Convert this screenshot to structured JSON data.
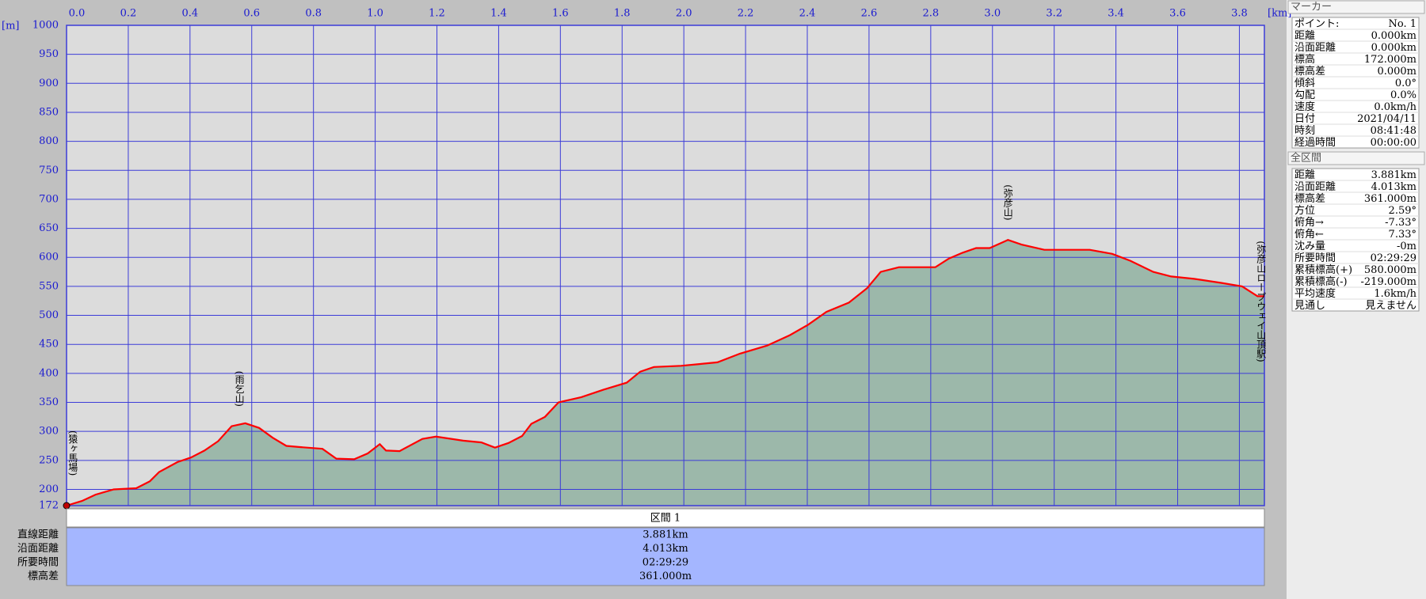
{
  "chart_data": {
    "type": "area",
    "x_unit": "[km]",
    "y_unit": "[m]",
    "x": [
      0,
      0.05,
      0.094,
      0.153,
      0.226,
      0.27,
      0.3,
      0.359,
      0.403,
      0.447,
      0.491,
      0.535,
      0.579,
      0.624,
      0.668,
      0.712,
      0.756,
      0.829,
      0.874,
      0.932,
      0.976,
      1.015,
      1.035,
      1.079,
      1.153,
      1.197,
      1.285,
      1.344,
      1.388,
      1.432,
      1.476,
      1.506,
      1.55,
      1.594,
      1.668,
      1.74,
      1.815,
      1.859,
      1.903,
      1.991,
      2.05,
      2.109,
      2.182,
      2.27,
      2.344,
      2.403,
      2.462,
      2.535,
      2.594,
      2.638,
      2.697,
      2.815,
      2.859,
      2.903,
      2.947,
      2.991,
      3.05,
      3.094,
      3.168,
      3.315,
      3.388,
      3.447,
      3.521,
      3.579,
      3.653,
      3.741,
      3.809,
      3.859,
      3.881
    ],
    "values": [
      172,
      180,
      191,
      200,
      202,
      214,
      230,
      247,
      255,
      267,
      283,
      309,
      314,
      306,
      289,
      275,
      273,
      270,
      253,
      252,
      262,
      278,
      267,
      266,
      287,
      291,
      284,
      281,
      272,
      280,
      292,
      313,
      325,
      350,
      359,
      372,
      384,
      403,
      411,
      413,
      416,
      419,
      434,
      448,
      466,
      484,
      506,
      522,
      547,
      575,
      583,
      583,
      598,
      608,
      616,
      616,
      630,
      622,
      613,
      613,
      606,
      594,
      575,
      567,
      563,
      556,
      550,
      533,
      533
    ],
    "line_color": "#ff0000",
    "fill_color": "#9cb8aa",
    "grid_color": "#3c3cd8",
    "grid": true,
    "xlim": [
      0,
      3.881
    ],
    "xticks": [
      {
        "value": 0,
        "label": "0.0"
      },
      0.2,
      0.4,
      0.6,
      0.8,
      {
        "value": 1,
        "label": "1.0"
      },
      1.2,
      1.4,
      1.6,
      1.8,
      {
        "value": 2,
        "label": "2.0"
      },
      2.2,
      2.4,
      2.6,
      2.8,
      {
        "value": 3,
        "label": "3.0"
      },
      3.2,
      3.4,
      3.6,
      3.8
    ],
    "ylim": [
      172,
      1000
    ],
    "yticks": [
      172,
      200,
      250,
      300,
      350,
      400,
      450,
      500,
      550,
      600,
      650,
      700,
      750,
      800,
      850,
      900,
      950,
      1000
    ],
    "annotations": [
      {
        "text": "(猿ヶ馬場)",
        "x": 0.02
      },
      {
        "text": "(雨乞山)",
        "x": 0.56
      },
      {
        "text": "(弥彦山)",
        "x": 3.05
      },
      {
        "text": "(弥彦山ロープウェイ山頂駅)",
        "x": 3.87
      }
    ]
  },
  "segment_table": {
    "title": "区間 1",
    "rows": [
      [
        "直線距離",
        "3.881km"
      ],
      [
        "沿面距離",
        "4.013km"
      ],
      [
        "所要時間",
        "02:29:29"
      ],
      [
        "標高差",
        "361.000m"
      ]
    ]
  },
  "marker_panel": {
    "title": "マーカー",
    "rows": [
      [
        "ポイント:",
        "No. 1"
      ],
      [
        "距離",
        "0.000km"
      ],
      [
        "沿面距離",
        "0.000km"
      ],
      [
        "標高",
        "172.000m"
      ],
      [
        "標高差",
        "0.000m"
      ],
      [
        "傾斜",
        "0.0°"
      ],
      [
        "勾配",
        "0.0%"
      ],
      [
        "速度",
        "0.0km/h"
      ],
      [
        "日付",
        "2021/04/11"
      ],
      [
        "時刻",
        "08:41:48"
      ],
      [
        "経過時間",
        "00:00:00"
      ]
    ]
  },
  "section_panel": {
    "title": "全区間",
    "rows": [
      [
        "距離",
        "3.881km"
      ],
      [
        "沿面距離",
        "4.013km"
      ],
      [
        "標高差",
        "361.000m"
      ],
      [
        "方位",
        "2.59°"
      ],
      [
        "俯角→",
        "-7.33°"
      ],
      [
        "俯角←",
        "7.33°"
      ],
      [
        "沈み量",
        "-0m"
      ],
      [
        "所要時間",
        "02:29:29"
      ],
      [
        "累積標高(+)",
        "580.000m"
      ],
      [
        "累積標高(-)",
        "-219.000m"
      ],
      [
        "平均速度",
        "1.6km/h"
      ],
      [
        "見通し",
        "見えません"
      ]
    ]
  }
}
